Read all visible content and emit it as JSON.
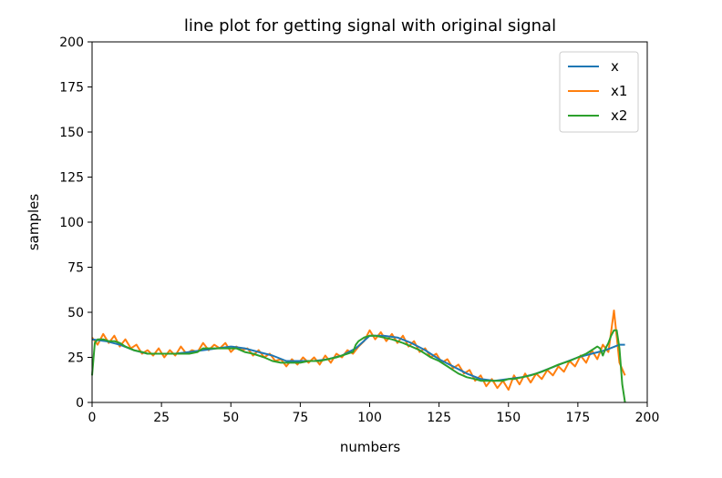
{
  "chart_data": {
    "type": "line",
    "title": "line plot for getting signal with original signal",
    "xlabel": "numbers",
    "ylabel": "samples",
    "xlim": [
      0,
      200
    ],
    "ylim": [
      0,
      200
    ],
    "xticks": [
      0,
      25,
      50,
      75,
      100,
      125,
      150,
      175,
      200
    ],
    "yticks": [
      0,
      25,
      50,
      75,
      100,
      125,
      150,
      175,
      200
    ],
    "grid": false,
    "legend_position": "top-right",
    "series": [
      {
        "name": "x",
        "color": "#1f77b4",
        "x": [
          0,
          5,
          10,
          15,
          20,
          25,
          30,
          35,
          40,
          45,
          50,
          55,
          60,
          65,
          70,
          75,
          80,
          85,
          90,
          95,
          100,
          105,
          110,
          115,
          120,
          125,
          130,
          135,
          140,
          145,
          150,
          155,
          160,
          165,
          170,
          175,
          180,
          185,
          190,
          192
        ],
        "values": [
          35,
          34,
          32,
          29,
          27,
          27,
          27,
          28,
          29,
          30,
          31,
          30,
          28,
          26,
          23,
          23,
          23,
          24,
          26,
          30,
          37,
          37,
          36,
          33,
          29,
          24,
          20,
          16,
          13,
          12,
          13,
          14,
          16,
          19,
          22,
          25,
          27,
          29,
          32,
          32
        ]
      },
      {
        "name": "x1",
        "color": "#ff7f0e",
        "x": [
          0,
          2,
          4,
          6,
          8,
          10,
          12,
          14,
          16,
          18,
          20,
          22,
          24,
          26,
          28,
          30,
          32,
          34,
          36,
          38,
          40,
          42,
          44,
          46,
          48,
          50,
          52,
          54,
          56,
          58,
          60,
          62,
          64,
          66,
          68,
          70,
          72,
          74,
          76,
          78,
          80,
          82,
          84,
          86,
          88,
          90,
          92,
          94,
          96,
          98,
          100,
          102,
          104,
          106,
          108,
          110,
          112,
          114,
          116,
          118,
          120,
          122,
          124,
          126,
          128,
          130,
          132,
          134,
          136,
          138,
          140,
          142,
          144,
          146,
          148,
          150,
          152,
          154,
          156,
          158,
          160,
          162,
          164,
          166,
          168,
          170,
          172,
          174,
          176,
          178,
          180,
          182,
          184,
          186,
          188,
          190,
          192
        ],
        "values": [
          36,
          32,
          38,
          33,
          37,
          31,
          35,
          30,
          32,
          27,
          29,
          26,
          30,
          25,
          29,
          26,
          31,
          27,
          29,
          28,
          33,
          29,
          32,
          30,
          33,
          28,
          31,
          29,
          30,
          26,
          29,
          25,
          27,
          23,
          24,
          20,
          24,
          21,
          25,
          22,
          25,
          21,
          26,
          22,
          27,
          25,
          29,
          27,
          31,
          34,
          40,
          35,
          39,
          34,
          38,
          33,
          37,
          31,
          34,
          28,
          30,
          25,
          27,
          22,
          24,
          19,
          21,
          16,
          18,
          12,
          15,
          9,
          13,
          8,
          12,
          7,
          15,
          10,
          16,
          11,
          16,
          13,
          18,
          15,
          20,
          17,
          23,
          20,
          26,
          22,
          29,
          24,
          32,
          28,
          51,
          22,
          15
        ]
      },
      {
        "name": "x2",
        "color": "#2ca02c",
        "x": [
          0,
          1,
          2,
          4,
          6,
          8,
          10,
          12,
          15,
          18,
          20,
          22,
          25,
          28,
          30,
          32,
          35,
          38,
          40,
          42,
          45,
          48,
          50,
          52,
          55,
          58,
          60,
          62,
          65,
          68,
          70,
          72,
          75,
          78,
          80,
          82,
          85,
          88,
          90,
          92,
          94,
          95,
          96,
          97,
          98,
          100,
          102,
          105,
          108,
          110,
          112,
          115,
          118,
          120,
          122,
          125,
          128,
          130,
          132,
          135,
          138,
          140,
          142,
          145,
          148,
          150,
          152,
          155,
          158,
          160,
          162,
          165,
          168,
          170,
          172,
          175,
          178,
          180,
          182,
          183,
          184,
          185,
          186,
          187,
          188,
          189,
          190,
          191,
          192
        ],
        "values": [
          15,
          33,
          35,
          35,
          34,
          34,
          33,
          31,
          29,
          28,
          27,
          27,
          27,
          27,
          27,
          27,
          27,
          28,
          30,
          30,
          30,
          30,
          30,
          30,
          28,
          27,
          26,
          25,
          23,
          22,
          22,
          22,
          22,
          23,
          23,
          23,
          24,
          25,
          26,
          27,
          28,
          32,
          34,
          35,
          36,
          37,
          37,
          36,
          35,
          34,
          33,
          31,
          29,
          27,
          25,
          23,
          20,
          18,
          16,
          14,
          13,
          12,
          12,
          12,
          12,
          13,
          13,
          14,
          15,
          16,
          17,
          19,
          21,
          22,
          23,
          25,
          27,
          29,
          31,
          30,
          26,
          30,
          33,
          37,
          40,
          40,
          30,
          10,
          0
        ]
      }
    ]
  }
}
